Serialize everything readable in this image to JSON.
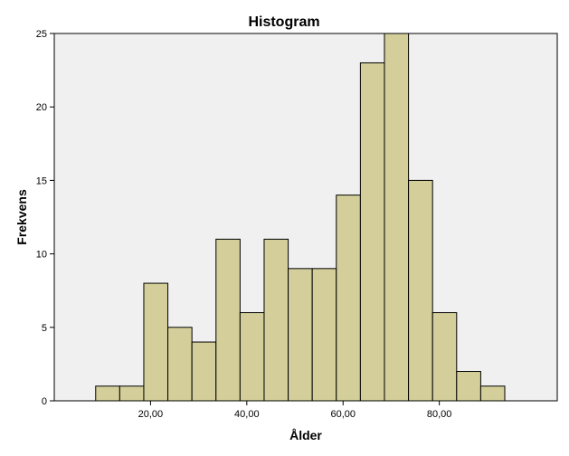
{
  "chart_data": {
    "type": "bar",
    "title": "Histogram",
    "xlabel": "Ålder",
    "ylabel": "Frekvens",
    "bin_edges": [
      8.6,
      13.6,
      18.6,
      23.6,
      28.6,
      33.6,
      38.6,
      43.6,
      48.6,
      53.6,
      58.6,
      63.6,
      68.6,
      73.6,
      78.6,
      83.6,
      88.6,
      93.6
    ],
    "values": [
      1,
      1,
      8,
      5,
      4,
      11,
      6,
      11,
      9,
      9,
      14,
      23,
      25,
      15,
      6,
      2,
      1
    ],
    "xlim": [
      0.0,
      104.5
    ],
    "ylim": [
      0,
      25
    ],
    "xticks": [
      {
        "value": 20,
        "label": "20,00"
      },
      {
        "value": 40,
        "label": "40,00"
      },
      {
        "value": 60,
        "label": "60,00"
      },
      {
        "value": 80,
        "label": "80,00"
      }
    ],
    "yticks": [
      {
        "value": 0,
        "label": "0"
      },
      {
        "value": 5,
        "label": "5"
      },
      {
        "value": 10,
        "label": "10"
      },
      {
        "value": 15,
        "label": "15"
      },
      {
        "value": 20,
        "label": "20"
      },
      {
        "value": 25,
        "label": "25"
      }
    ],
    "grid": false,
    "colors": {
      "bar_fill": "#d4cf9a",
      "bar_stroke": "#000000",
      "plot_background": "#f0f0f0",
      "page_background": "#ffffff"
    }
  }
}
